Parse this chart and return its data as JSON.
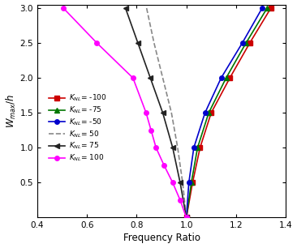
{
  "xlabel": "Frequency Ratio",
  "ylabel": "$W_{max}/h$",
  "xlim": [
    0.4,
    1.4
  ],
  "ylim": [
    0.0,
    3.05
  ],
  "yticks": [
    0.5,
    1.0,
    1.5,
    2.0,
    2.5,
    3.0
  ],
  "xticks": [
    0.4,
    0.6,
    0.8,
    1.0,
    1.2,
    1.4
  ],
  "curves": [
    {
      "label": "$K_{NL}$= -100",
      "color": "#cc0000",
      "linestyle": "-",
      "marker": "s",
      "markersize": 4,
      "w": [
        3.0,
        2.5,
        2.0,
        1.5,
        1.0,
        0.5,
        0.0
      ],
      "freq": [
        1.34,
        1.255,
        1.175,
        1.1,
        1.055,
        1.025,
        1.0
      ]
    },
    {
      "label": "$K_{NL}$= -75",
      "color": "#007700",
      "linestyle": "-",
      "marker": "^",
      "markersize": 4,
      "w": [
        3.0,
        2.5,
        2.0,
        1.5,
        1.0,
        0.5,
        0.0
      ],
      "freq": [
        1.325,
        1.24,
        1.16,
        1.09,
        1.045,
        1.02,
        1.0
      ]
    },
    {
      "label": "$K_{NL}$= -50",
      "color": "#0000cc",
      "linestyle": "-",
      "marker": "o",
      "markersize": 4,
      "w": [
        3.0,
        2.5,
        2.0,
        1.5,
        1.0,
        0.5,
        0.0
      ],
      "freq": [
        1.305,
        1.225,
        1.14,
        1.075,
        1.03,
        1.01,
        1.0
      ]
    },
    {
      "label": "$K_{NL}$= 50",
      "color": "#888888",
      "linestyle": "--",
      "marker": "",
      "markersize": 0,
      "w": [
        3.0,
        2.5,
        2.0,
        1.5,
        1.0,
        0.5,
        0.0
      ],
      "freq": [
        0.84,
        0.87,
        0.905,
        0.94,
        0.965,
        0.985,
        1.0
      ]
    },
    {
      "label": "$K_{NL}$= 75",
      "color": "#222222",
      "linestyle": "-",
      "marker": "<",
      "markersize": 4,
      "w": [
        3.0,
        2.5,
        2.0,
        1.5,
        1.0,
        0.5,
        0.0
      ],
      "freq": [
        0.755,
        0.805,
        0.855,
        0.905,
        0.945,
        0.975,
        1.0
      ]
    },
    {
      "label": "$K_{NL}$= 100",
      "color": "#ff00ff",
      "linestyle": "-",
      "marker": "o",
      "markersize": 4,
      "w": [
        3.0,
        2.5,
        2.0,
        1.5,
        1.25,
        1.0,
        0.75,
        0.5,
        0.25,
        0.0
      ],
      "freq": [
        0.505,
        0.64,
        0.785,
        0.838,
        0.858,
        0.878,
        0.91,
        0.945,
        0.975,
        1.0
      ]
    }
  ],
  "legend_fontsize": 6.5,
  "axis_fontsize": 8.5,
  "tick_fontsize": 7.5
}
